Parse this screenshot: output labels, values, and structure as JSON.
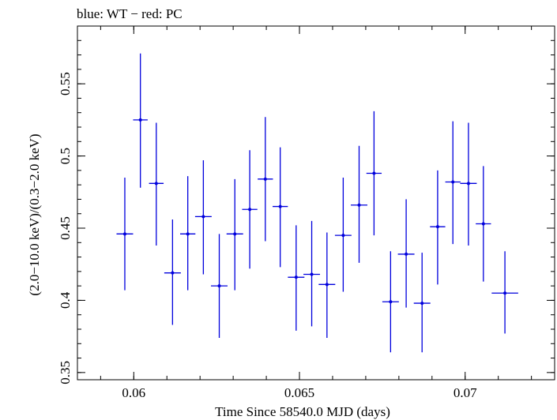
{
  "chart_data": {
    "type": "scatter",
    "title": "blue: WT − red: PC",
    "xlabel": "Time Since 58540.0 MJD (days)",
    "ylabel": "(2.0−10.0 keV)/(0.3−2.0 keV)",
    "xlim": [
      0.0583,
      0.0727
    ],
    "ylim": [
      0.345,
      0.59
    ],
    "x_ticks": [
      0.06,
      0.065,
      0.07
    ],
    "x_tick_labels": [
      "0.06",
      "0.065",
      "0.07"
    ],
    "y_ticks": [
      0.35,
      0.4,
      0.45,
      0.5,
      0.55
    ],
    "y_tick_labels": [
      "0.35",
      "0.4",
      "0.45",
      "0.5",
      "0.55"
    ],
    "grid": false,
    "series": [
      {
        "color": "#0000dd",
        "points": [
          {
            "x": 0.05973,
            "xerr": 0.00025,
            "y": 0.446,
            "ylo": 0.407,
            "yhi": 0.485
          },
          {
            "x": 0.0602,
            "xerr": 0.00022,
            "y": 0.525,
            "ylo": 0.478,
            "yhi": 0.571
          },
          {
            "x": 0.06068,
            "xerr": 0.00022,
            "y": 0.481,
            "ylo": 0.438,
            "yhi": 0.523
          },
          {
            "x": 0.06117,
            "xerr": 0.00025,
            "y": 0.419,
            "ylo": 0.383,
            "yhi": 0.456
          },
          {
            "x": 0.06163,
            "xerr": 0.00023,
            "y": 0.446,
            "ylo": 0.407,
            "yhi": 0.486
          },
          {
            "x": 0.0621,
            "xerr": 0.00025,
            "y": 0.458,
            "ylo": 0.418,
            "yhi": 0.497
          },
          {
            "x": 0.06258,
            "xerr": 0.00025,
            "y": 0.41,
            "ylo": 0.374,
            "yhi": 0.446
          },
          {
            "x": 0.06305,
            "xerr": 0.00025,
            "y": 0.446,
            "ylo": 0.407,
            "yhi": 0.484
          },
          {
            "x": 0.0635,
            "xerr": 0.00023,
            "y": 0.463,
            "ylo": 0.422,
            "yhi": 0.504
          },
          {
            "x": 0.06397,
            "xerr": 0.00023,
            "y": 0.484,
            "ylo": 0.441,
            "yhi": 0.527
          },
          {
            "x": 0.06442,
            "xerr": 0.00023,
            "y": 0.465,
            "ylo": 0.423,
            "yhi": 0.506
          },
          {
            "x": 0.0649,
            "xerr": 0.00025,
            "y": 0.416,
            "ylo": 0.379,
            "yhi": 0.452
          },
          {
            "x": 0.06537,
            "xerr": 0.00025,
            "y": 0.418,
            "ylo": 0.382,
            "yhi": 0.455
          },
          {
            "x": 0.06583,
            "xerr": 0.00025,
            "y": 0.411,
            "ylo": 0.374,
            "yhi": 0.447
          },
          {
            "x": 0.06632,
            "xerr": 0.00025,
            "y": 0.445,
            "ylo": 0.406,
            "yhi": 0.485
          },
          {
            "x": 0.0668,
            "xerr": 0.00025,
            "y": 0.466,
            "ylo": 0.426,
            "yhi": 0.507
          },
          {
            "x": 0.06725,
            "xerr": 0.00023,
            "y": 0.488,
            "ylo": 0.445,
            "yhi": 0.531
          },
          {
            "x": 0.06775,
            "xerr": 0.00025,
            "y": 0.399,
            "ylo": 0.364,
            "yhi": 0.434
          },
          {
            "x": 0.06822,
            "xerr": 0.00025,
            "y": 0.432,
            "ylo": 0.395,
            "yhi": 0.47
          },
          {
            "x": 0.0687,
            "xerr": 0.00025,
            "y": 0.398,
            "ylo": 0.364,
            "yhi": 0.433
          },
          {
            "x": 0.06917,
            "xerr": 0.00023,
            "y": 0.451,
            "ylo": 0.411,
            "yhi": 0.49
          },
          {
            "x": 0.06963,
            "xerr": 0.00023,
            "y": 0.482,
            "ylo": 0.439,
            "yhi": 0.524
          },
          {
            "x": 0.0701,
            "xerr": 0.00025,
            "y": 0.481,
            "ylo": 0.438,
            "yhi": 0.523
          },
          {
            "x": 0.07055,
            "xerr": 0.00023,
            "y": 0.453,
            "ylo": 0.413,
            "yhi": 0.493
          },
          {
            "x": 0.0712,
            "xerr": 0.0004,
            "y": 0.405,
            "ylo": 0.377,
            "yhi": 0.434
          }
        ]
      }
    ]
  }
}
